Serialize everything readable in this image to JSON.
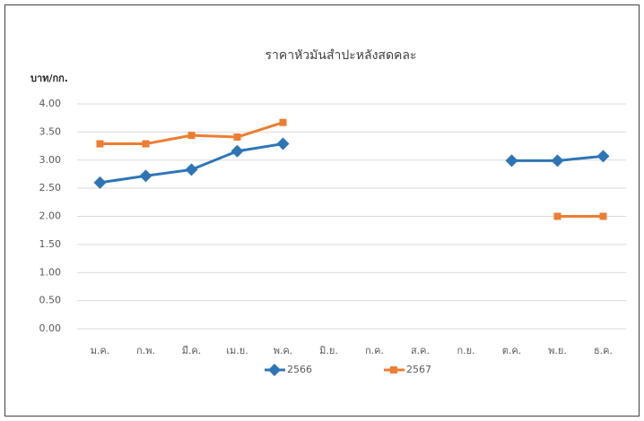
{
  "chart_data": {
    "type": "line",
    "title": "ราคาหัวมันสำปะหลังสดคละ",
    "y_axis_label": "บาท/กก.",
    "categories": [
      "ม.ค.",
      "ก.พ.",
      "มี.ค.",
      "เม.ย.",
      "พ.ค.",
      "มิ.ย.",
      "ก.ค.",
      "ส.ค.",
      "ก.ย.",
      "ต.ค.",
      "พ.ย.",
      "ธ.ค."
    ],
    "series": [
      {
        "name": "2566",
        "color": "#2e75b6",
        "marker": "diamond",
        "values": [
          2.6,
          2.72,
          2.83,
          3.16,
          3.29,
          null,
          null,
          null,
          null,
          2.99,
          2.99,
          3.07
        ]
      },
      {
        "name": "2567",
        "color": "#ed7d31",
        "marker": "square",
        "values": [
          3.29,
          3.29,
          3.44,
          3.41,
          3.67,
          null,
          null,
          null,
          null,
          null,
          2.0,
          2.0
        ]
      }
    ],
    "ylim": [
      0,
      4
    ],
    "yticks": [
      {
        "value": 0,
        "label": "0.00"
      },
      {
        "value": 0.5,
        "label": "0.50"
      },
      {
        "value": 1,
        "label": "1.00"
      },
      {
        "value": 1.5,
        "label": "1.50"
      },
      {
        "value": 2,
        "label": "2.00"
      },
      {
        "value": 2.5,
        "label": "2.50"
      },
      {
        "value": 3,
        "label": "3.00"
      },
      {
        "value": 3.5,
        "label": "3.50"
      },
      {
        "value": 4,
        "label": "4.00"
      }
    ],
    "grid": true,
    "legend": "bottom"
  }
}
